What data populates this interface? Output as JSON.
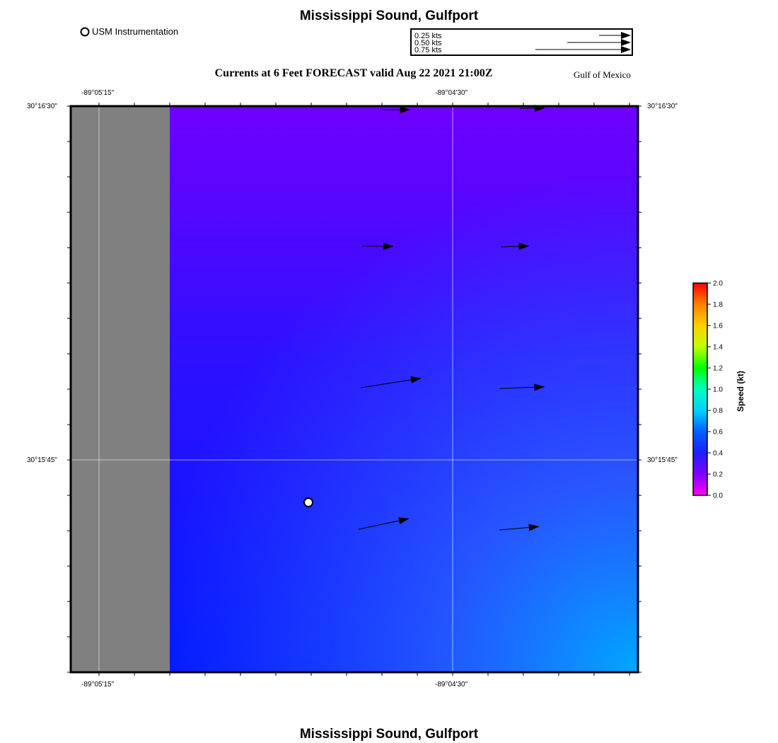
{
  "header": {
    "title": "Mississippi Sound, Gulfport",
    "subtitle": "Currents at 6 Feet FORECAST valid Aug 22 2021 21:00Z",
    "region_label": "Gulf of Mexico",
    "instrument_legend": "USM Instrumentation"
  },
  "footer": {
    "title": "Mississippi Sound, Gulfport"
  },
  "scale_legend": [
    {
      "label": "0.25 kts",
      "speed": 0.25
    },
    {
      "label": "0.50 kts",
      "speed": 0.5
    },
    {
      "label": "0.75 kts",
      "speed": 0.75
    }
  ],
  "axes": {
    "lon_ticks": [
      "-89°05'15\"",
      "-89°04'30\""
    ],
    "lat_ticks": [
      "30°16'30\"",
      "30°15'45\""
    ]
  },
  "colorbar": {
    "label": "Speed (kt)",
    "ticks": [
      "2.0",
      "1.8",
      "1.6",
      "1.4",
      "1.2",
      "1.0",
      "0.8",
      "0.6",
      "0.4",
      "0.2",
      "0.0"
    ],
    "min": 0.0,
    "max": 2.0,
    "colors": [
      "#ff0000",
      "#ff8000",
      "#ffd000",
      "#c0ff00",
      "#00ff00",
      "#00ffc0",
      "#00d0ff",
      "#0060ff",
      "#2020ff",
      "#8000ff",
      "#ff00ff"
    ]
  },
  "map": {
    "land_color": "#808080",
    "instrument_station": {
      "name": "USM Instrumentation"
    },
    "current_vectors": [
      {
        "speed": 0.27,
        "dir_deg": 90
      },
      {
        "speed": 0.24,
        "dir_deg": 90
      },
      {
        "speed": 0.3,
        "dir_deg": 90
      },
      {
        "speed": 0.27,
        "dir_deg": 88
      },
      {
        "speed": 0.58,
        "dir_deg": 81
      },
      {
        "speed": 0.43,
        "dir_deg": 88
      },
      {
        "speed": 0.49,
        "dir_deg": 78
      },
      {
        "speed": 0.38,
        "dir_deg": 85
      }
    ]
  }
}
